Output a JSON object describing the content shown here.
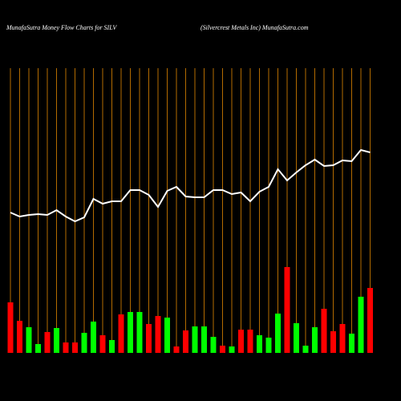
{
  "chart_data": {
    "type": "money-flow",
    "title": "MunafaSutra  Money Flow  Charts for SILV",
    "subtitle": "(Silvercrest Metals Inc) MunafaSutra.com",
    "grid_color": "#b36b00",
    "line_color": "#ffffff",
    "series": [
      {
        "name": null,
        "type": "bar",
        "values": [
          63,
          40,
          32,
          11,
          26,
          31,
          13,
          13,
          25,
          39,
          22,
          16,
          48,
          51,
          51,
          36,
          46,
          44,
          8,
          28,
          33,
          33,
          20,
          9,
          8,
          29,
          29,
          22,
          19,
          49,
          107,
          37,
          9,
          32,
          55,
          27,
          36,
          24,
          70,
          81
        ],
        "colors": [
          "#ff0000",
          "#ff0000",
          "#00ff00",
          "#00ff00",
          "#ff0000",
          "#00ff00",
          "#ff0000",
          "#ff0000",
          "#00ff00",
          "#00ff00",
          "#ff0000",
          "#00ff00",
          "#ff0000",
          "#00ff00",
          "#00ff00",
          "#ff0000",
          "#ff0000",
          "#00ff00",
          "#ff0000",
          "#ff0000",
          "#00ff00",
          "#00ff00",
          "#00ff00",
          "#ff0000",
          "#00ff00",
          "#ff0000",
          "#ff0000",
          "#00ff00",
          "#00ff00",
          "#00ff00",
          "#ff0000",
          "#00ff00",
          "#00ff00",
          "#00ff00",
          "#ff0000",
          "#ff0000",
          "#ff0000",
          "#00ff00",
          "#00ff00",
          "#ff0000"
        ]
      },
      {
        "name": null,
        "type": "line",
        "values": [
          175,
          170,
          172,
          173,
          172,
          178,
          170,
          164,
          169,
          192,
          186,
          189,
          189,
          203,
          203,
          197,
          182,
          202,
          207,
          195,
          194,
          194,
          203,
          203,
          198,
          200,
          189,
          201,
          207,
          229,
          215,
          225,
          234,
          241,
          233,
          234,
          240,
          239,
          253,
          250
        ]
      }
    ]
  }
}
